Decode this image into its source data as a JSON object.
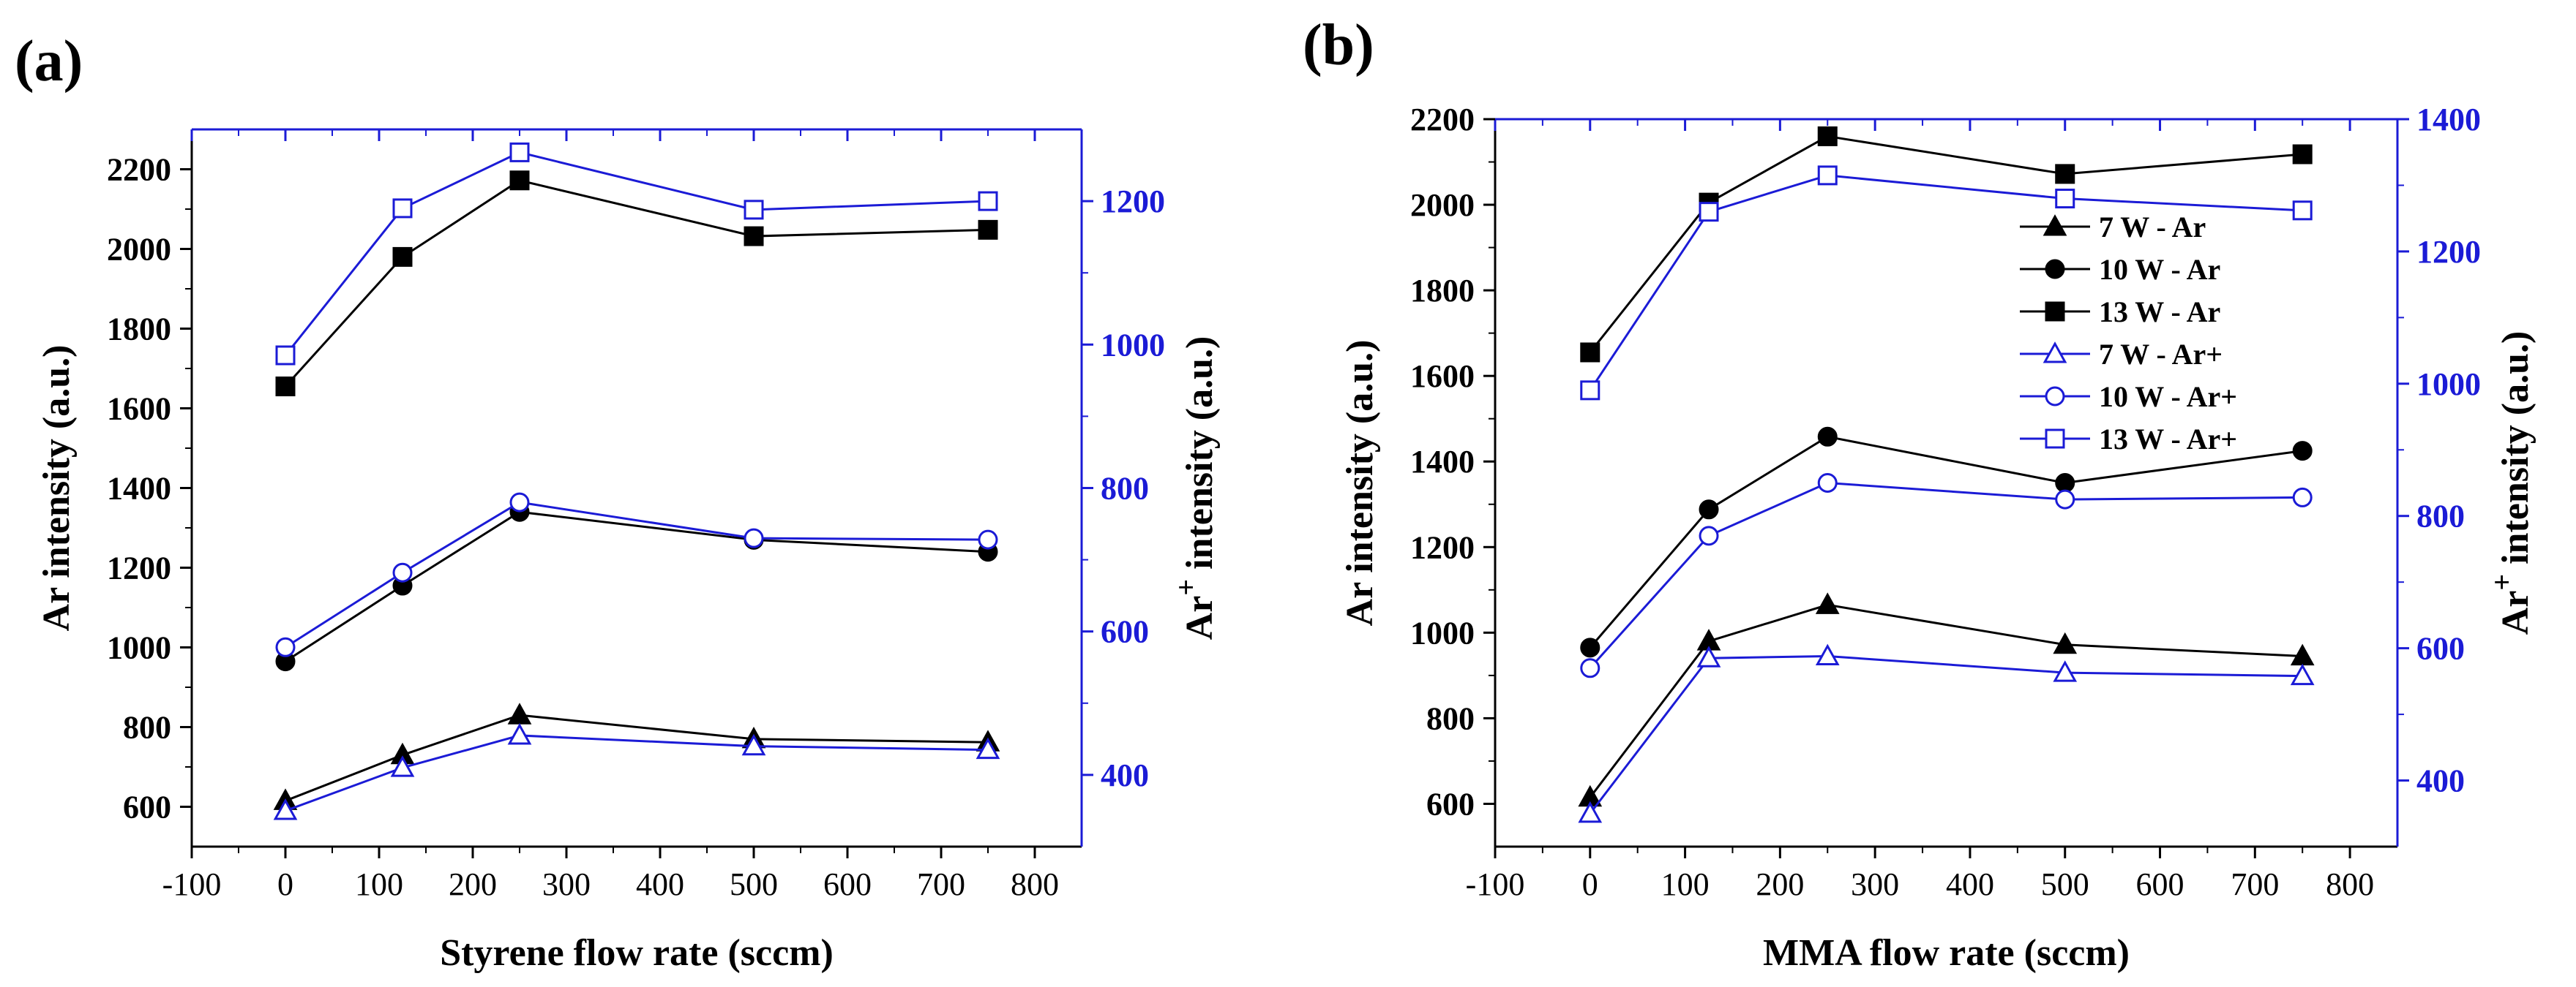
{
  "chart_data": [
    {
      "type": "line",
      "panel_label": "(a)",
      "xlabel": "Styrene flow rate (sccm)",
      "ylabel": "Ar intensity (a.u.)",
      "y2label_main": "Ar",
      "y2label_sup": "+",
      "y2label_rest": " intensity (a.u.)",
      "xlim": [
        -100,
        850
      ],
      "ylim": [
        500,
        2300
      ],
      "y2lim": [
        300,
        1300
      ],
      "xticks": [
        -100,
        0,
        100,
        200,
        300,
        400,
        500,
        600,
        700,
        800
      ],
      "yticks": [
        600,
        800,
        1000,
        1200,
        1400,
        1600,
        1800,
        2000,
        2200
      ],
      "y2ticks": [
        400,
        600,
        800,
        1000,
        1200
      ],
      "x": [
        0,
        125,
        250,
        500,
        750
      ],
      "series": [
        {
          "name": "7 W - Ar",
          "axis": "left",
          "marker": "triangle-filled",
          "color": "#000000",
          "values": [
            615,
            730,
            830,
            770,
            762
          ]
        },
        {
          "name": "10 W - Ar",
          "axis": "left",
          "marker": "circle-filled",
          "color": "#000000",
          "values": [
            965,
            1155,
            1340,
            1270,
            1240
          ]
        },
        {
          "name": "13 W - Ar",
          "axis": "left",
          "marker": "square-filled",
          "color": "#000000",
          "values": [
            1655,
            1980,
            2172,
            2032,
            2048
          ]
        },
        {
          "name": "7 W - Ar+",
          "axis": "right",
          "marker": "triangle-open",
          "color": "#1b1bd6",
          "values": [
            350,
            410,
            455,
            440,
            435
          ]
        },
        {
          "name": "10 W - Ar+",
          "axis": "right",
          "marker": "circle-open",
          "color": "#1b1bd6",
          "values": [
            578,
            682,
            780,
            730,
            728
          ]
        },
        {
          "name": "13 W - Ar+",
          "axis": "right",
          "marker": "square-open",
          "color": "#1b1bd6",
          "values": [
            985,
            1190,
            1268,
            1188,
            1200
          ]
        }
      ],
      "legend": false
    },
    {
      "type": "line",
      "panel_label": "(b)",
      "xlabel": "MMA flow rate (sccm)",
      "ylabel": "Ar intensity (a.u.)",
      "y2label_main": "Ar",
      "y2label_sup": "+",
      "y2label_rest": " intensity (a.u.)",
      "xlim": [
        -100,
        850
      ],
      "ylim": [
        500,
        2200
      ],
      "y2lim": [
        300,
        1400
      ],
      "xticks": [
        -100,
        0,
        100,
        200,
        300,
        400,
        500,
        600,
        700,
        800
      ],
      "yticks": [
        600,
        800,
        1000,
        1200,
        1400,
        1600,
        1800,
        2000,
        2200
      ],
      "y2ticks": [
        400,
        600,
        800,
        1000,
        1200,
        1400
      ],
      "x": [
        0,
        125,
        250,
        500,
        750
      ],
      "series": [
        {
          "name": "7 W - Ar",
          "axis": "left",
          "marker": "triangle-filled",
          "color": "#000000",
          "values": [
            615,
            980,
            1065,
            972,
            945
          ]
        },
        {
          "name": "10 W - Ar",
          "axis": "left",
          "marker": "circle-filled",
          "color": "#000000",
          "values": [
            965,
            1288,
            1458,
            1350,
            1425
          ]
        },
        {
          "name": "13 W - Ar",
          "axis": "left",
          "marker": "square-filled",
          "color": "#000000",
          "values": [
            1655,
            2005,
            2160,
            2072,
            2118
          ]
        },
        {
          "name": "7 W - Ar+",
          "axis": "right",
          "marker": "triangle-open",
          "color": "#1b1bd6",
          "values": [
            350,
            585,
            588,
            563,
            558
          ]
        },
        {
          "name": "10 W - Ar+",
          "axis": "right",
          "marker": "circle-open",
          "color": "#1b1bd6",
          "values": [
            570,
            770,
            850,
            825,
            828
          ]
        },
        {
          "name": "13 W - Ar+",
          "axis": "right",
          "marker": "square-open",
          "color": "#1b1bd6",
          "values": [
            990,
            1260,
            1315,
            1280,
            1262
          ]
        }
      ],
      "legend": true,
      "legend_position": "upper-right-inside"
    }
  ]
}
